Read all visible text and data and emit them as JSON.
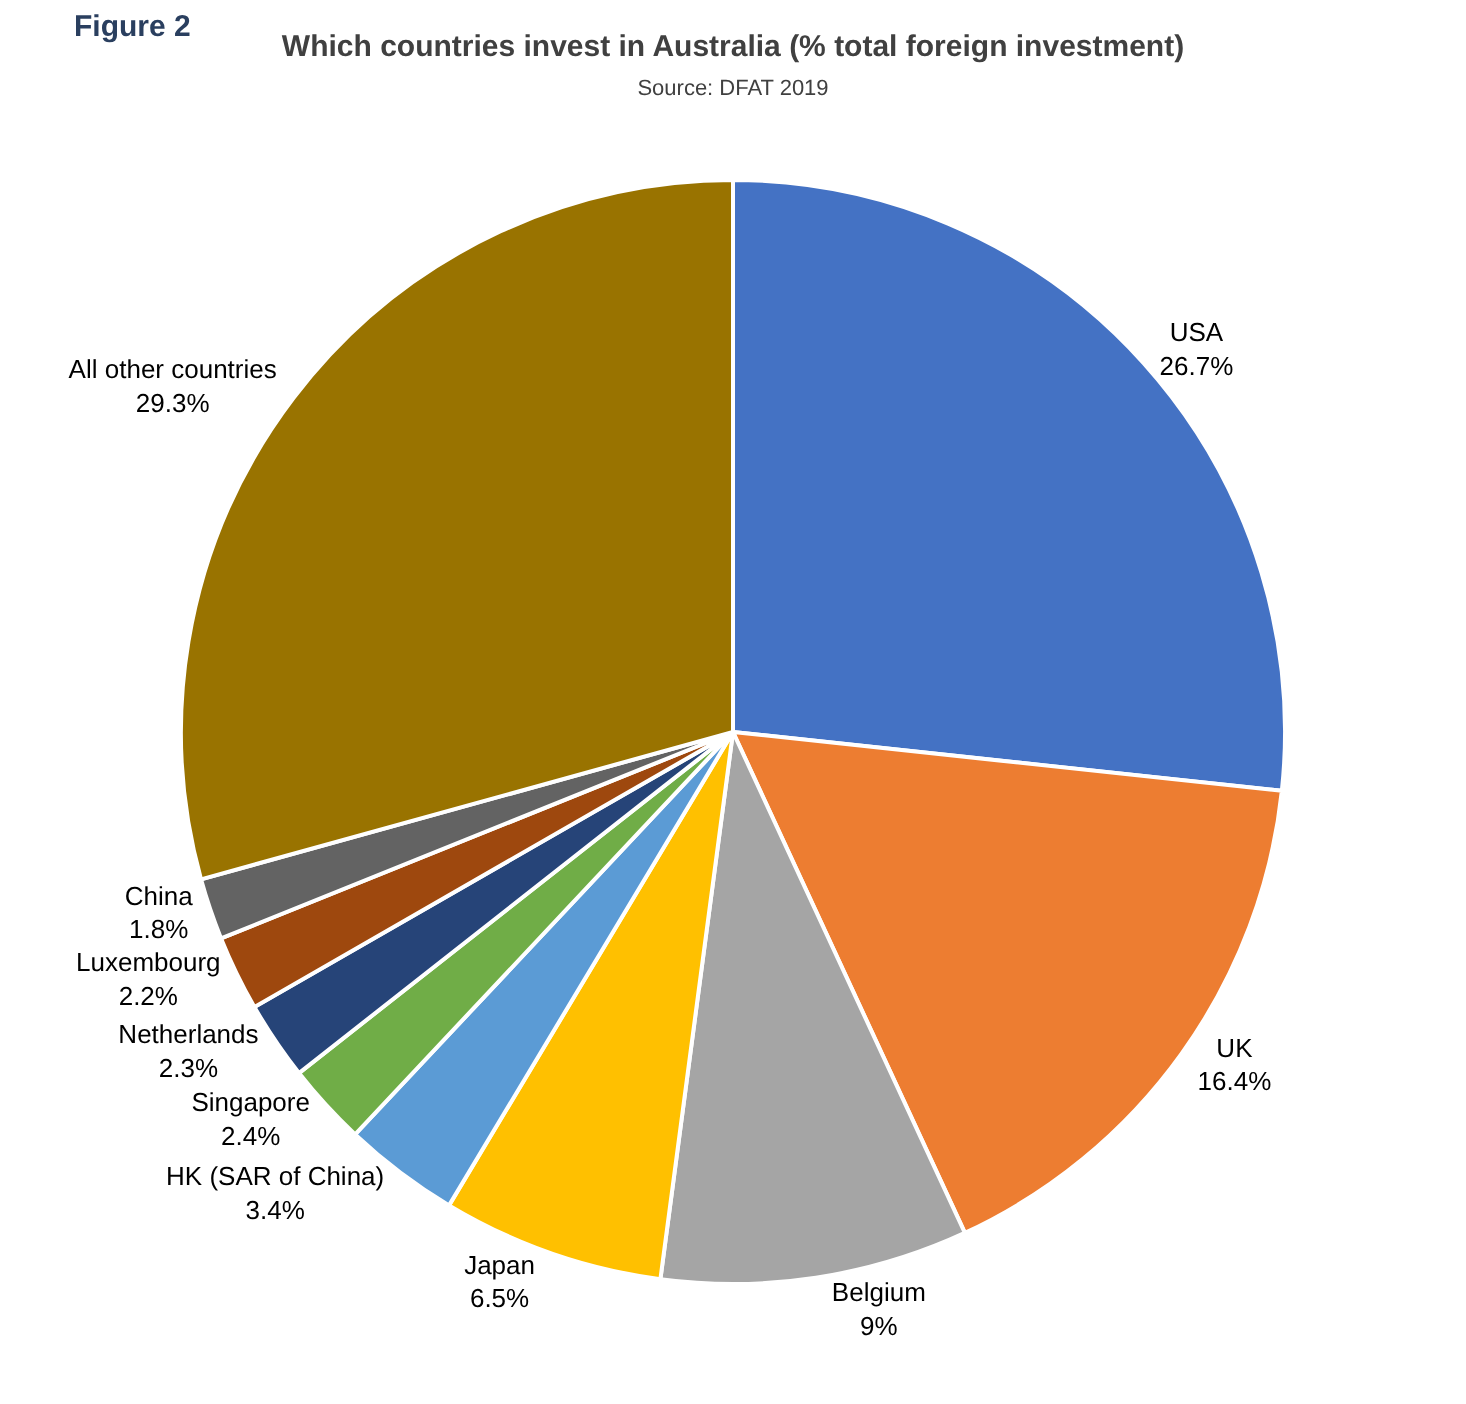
{
  "chart_data": {
    "type": "pie",
    "title": "Which countries invest in Australia (% total foreign investment)",
    "subtitle": "Source: DFAT 2019",
    "annotations": [
      "Figure 2"
    ],
    "categories": [
      "USA",
      "UK",
      "Belgium",
      "Japan",
      "HK (SAR of China)",
      "Singapore",
      "Netherlands",
      "Luxembourg",
      "China",
      "All other countries"
    ],
    "values": [
      26.7,
      16.4,
      9,
      6.5,
      3.4,
      2.4,
      2.3,
      2.2,
      1.8,
      29.3
    ],
    "value_labels": [
      "26.7%",
      "16.4%",
      "9%",
      "6.5%",
      "3.4%",
      "2.4%",
      "2.3%",
      "2.2%",
      "1.8%",
      "29.3%"
    ],
    "colors": [
      "#4472c4",
      "#ed7d31",
      "#a5a5a5",
      "#ffc000",
      "#5b9bd5",
      "#70ad47",
      "#264478",
      "#9e480e",
      "#636363",
      "#997300"
    ],
    "legend": false
  }
}
